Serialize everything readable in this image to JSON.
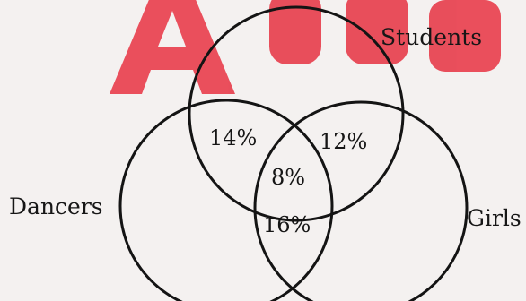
{
  "watermark": {
    "text": "Adda",
    "color": "#e8414f"
  },
  "sets": [
    {
      "key": "students",
      "label": "Students"
    },
    {
      "key": "dancers",
      "label": "Dancers"
    },
    {
      "key": "girls",
      "label": "Girls"
    }
  ],
  "regions": {
    "students_dancers": "14%",
    "students_girls": "12%",
    "all_three": "8%",
    "dancers_girls": "16%"
  },
  "colors": {
    "background": "#f4f1f0",
    "stroke": "#141414",
    "text": "#161616"
  }
}
